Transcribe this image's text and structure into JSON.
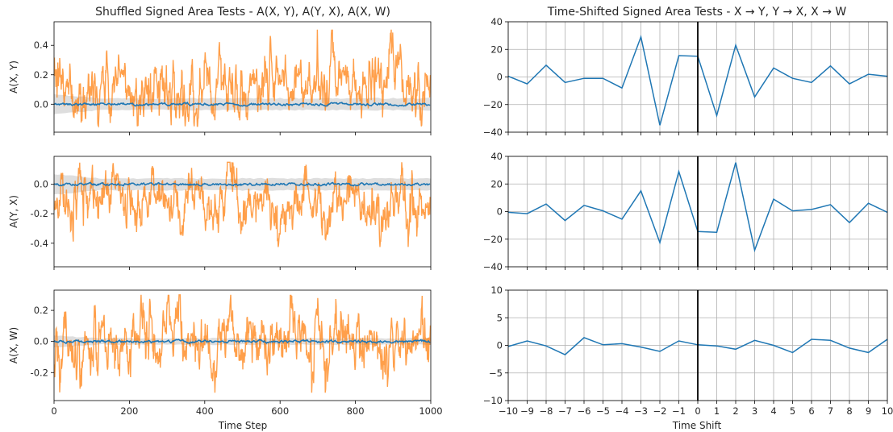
{
  "left_title": "Shuffled Signed Area Tests - A(X, Y), A(Y, X), A(X, W)",
  "right_title": "Time-Shifted Signed Area Tests - X → Y, Y → X, X → W",
  "left_xlabel": "Time Step",
  "right_xlabel": "Time Shift",
  "colors": {
    "shuffled": "#1f77b4",
    "signal": "#ff7f0e",
    "band": "#d3d3d3",
    "grid": "#b0b0b0",
    "zero_line": "#000000"
  },
  "chart_data": [
    {
      "type": "line",
      "ylabel": "A(X, Y)",
      "xlim": [
        0,
        1000
      ],
      "ylim": [
        -0.19,
        0.56
      ],
      "x_ticks": [
        "0",
        "200",
        "400",
        "600",
        "800",
        "1000"
      ],
      "y_ticks": [
        "0.0",
        "0.2",
        "0.4"
      ],
      "grid": false,
      "series": [
        {
          "role": "shuffled mean with shaded band"
        },
        {
          "role": "orange signal"
        }
      ],
      "signal_range": [
        -0.15,
        0.53
      ],
      "band_halfwidth": [
        0.07,
        0.04
      ]
    },
    {
      "type": "line",
      "ylabel": "A(Y, X)",
      "xlim": [
        0,
        1000
      ],
      "ylim": [
        -0.56,
        0.19
      ],
      "x_ticks": [
        "0",
        "200",
        "400",
        "600",
        "800",
        "1000"
      ],
      "y_ticks": [
        "0.0",
        "-0.2",
        "-0.4"
      ],
      "grid": false,
      "series": [
        {
          "role": "shuffled mean with shaded band"
        },
        {
          "role": "orange signal"
        }
      ],
      "signal_range": [
        -0.53,
        0.15
      ],
      "band_halfwidth": [
        0.07,
        0.04
      ]
    },
    {
      "type": "line",
      "ylabel": "A(X, W)",
      "xlim": [
        0,
        1000
      ],
      "ylim": [
        -0.38,
        0.33
      ],
      "x_ticks": [
        "0",
        "200",
        "400",
        "600",
        "800",
        "1000"
      ],
      "y_ticks": [
        "0.2",
        "0.0",
        "-0.2"
      ],
      "grid": false,
      "series": [
        {
          "role": "shuffled mean with shaded band"
        },
        {
          "role": "orange signal"
        }
      ],
      "signal_range": [
        -0.36,
        0.3
      ],
      "band_halfwidth": [
        0.04,
        0.02
      ]
    },
    {
      "type": "line",
      "xlim": [
        -10,
        10
      ],
      "ylim": [
        -40,
        40
      ],
      "y_ticks": [
        40,
        20,
        0,
        -20,
        -40
      ],
      "x_ticks": [
        -10,
        -9,
        -8,
        -7,
        -6,
        -5,
        -4,
        -3,
        -2,
        -1,
        0,
        1,
        2,
        3,
        4,
        5,
        6,
        7,
        8,
        9,
        10
      ],
      "grid": true,
      "vline": 0,
      "x": [
        -10,
        -9,
        -8,
        -7,
        -6,
        -5,
        -4,
        -3,
        -2,
        -1,
        0,
        1,
        2,
        3,
        4,
        5,
        6,
        7,
        8,
        9,
        10
      ],
      "values": [
        0.5,
        -5,
        8.5,
        -4,
        -1,
        -1,
        -8,
        29,
        -35,
        15.5,
        15,
        -28,
        23,
        -14.5,
        6.5,
        -1,
        -4,
        8,
        -5,
        2,
        0.5
      ]
    },
    {
      "type": "line",
      "xlim": [
        -10,
        10
      ],
      "ylim": [
        -40,
        40
      ],
      "y_ticks": [
        40,
        20,
        0,
        -20,
        -40
      ],
      "x_ticks": [
        -10,
        -9,
        -8,
        -7,
        -6,
        -5,
        -4,
        -3,
        -2,
        -1,
        0,
        1,
        2,
        3,
        4,
        5,
        6,
        7,
        8,
        9,
        10
      ],
      "grid": true,
      "vline": 0,
      "x": [
        -10,
        -9,
        -8,
        -7,
        -6,
        -5,
        -4,
        -3,
        -2,
        -1,
        0,
        1,
        2,
        3,
        4,
        5,
        6,
        7,
        8,
        9,
        10
      ],
      "values": [
        -0.5,
        -1.5,
        5.5,
        -6.5,
        4.5,
        0.5,
        -5.5,
        15,
        -22.5,
        29,
        -14.5,
        -15,
        35.5,
        -28,
        9,
        0.5,
        1.5,
        5,
        -8,
        6,
        -0.5
      ]
    },
    {
      "type": "line",
      "xlim": [
        -10,
        10
      ],
      "ylim": [
        -10,
        10
      ],
      "y_ticks": [
        10,
        5,
        0,
        -5,
        -10
      ],
      "x_ticks": [
        -10,
        -9,
        -8,
        -7,
        -6,
        -5,
        -4,
        -3,
        -2,
        -1,
        0,
        1,
        2,
        3,
        4,
        5,
        6,
        7,
        8,
        9,
        10
      ],
      "x_tick_labels": [
        "−10",
        "−9",
        "−8",
        "−7",
        "−6",
        "−5",
        "−4",
        "−3",
        "−2",
        "−1",
        "0",
        "1",
        "2",
        "3",
        "4",
        "5",
        "6",
        "7",
        "8",
        "9",
        "10"
      ],
      "grid": true,
      "vline": 0,
      "x": [
        -10,
        -9,
        -8,
        -7,
        -6,
        -5,
        -4,
        -3,
        -2,
        -1,
        0,
        1,
        2,
        3,
        4,
        5,
        6,
        7,
        8,
        9,
        10
      ],
      "values": [
        -0.2,
        0.8,
        -0.1,
        -1.7,
        1.4,
        0.1,
        0.3,
        -0.3,
        -1.1,
        0.8,
        0.1,
        -0.1,
        -0.7,
        0.9,
        0,
        -1.3,
        1.1,
        0.9,
        -0.5,
        -1.3,
        1.1
      ]
    }
  ]
}
